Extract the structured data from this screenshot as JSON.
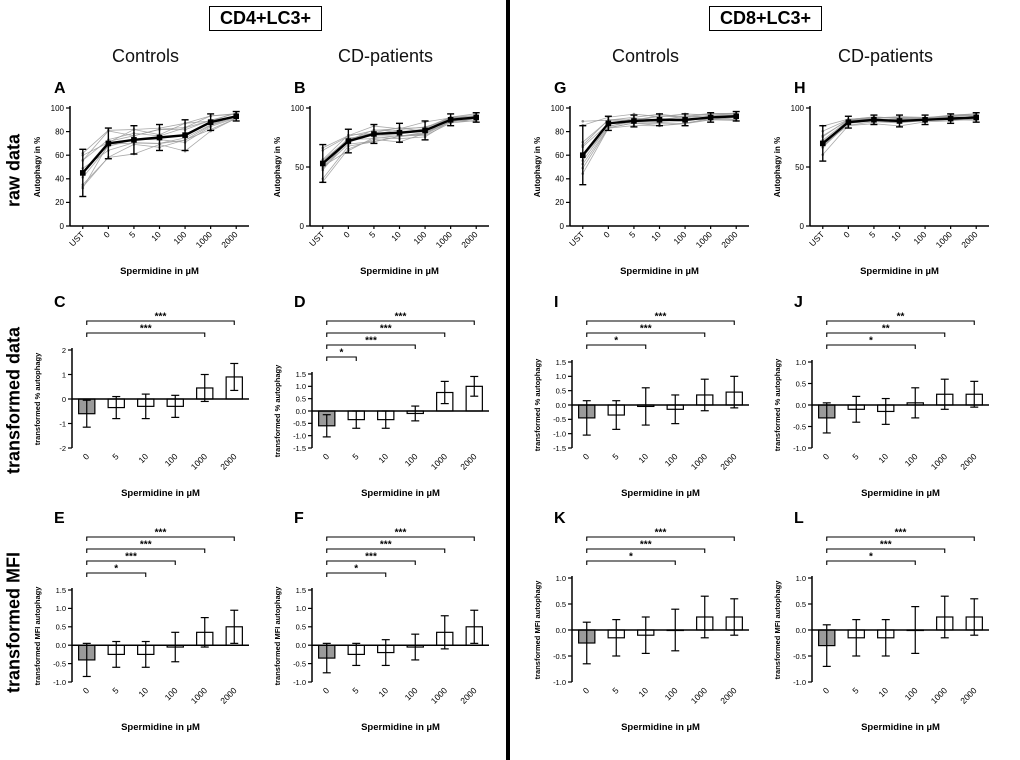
{
  "figure": {
    "group_headers": [
      {
        "label": "CD4+LC3+"
      },
      {
        "label": "CD8+LC3+"
      }
    ],
    "column_headers": [
      "Controls",
      "CD-patients",
      "Controls",
      "CD-patients"
    ],
    "row_labels": [
      "raw data",
      "transformed data",
      "transformed MFI"
    ],
    "colors": {
      "bar_gray": "#9a9a9a",
      "bar_white": "#ffffff",
      "line_black": "#000000",
      "individual_gray": "#9a9a9a"
    }
  },
  "chart_data": [
    {
      "panel": "A",
      "type": "line",
      "group": "CD4+LC3+",
      "cohort": "Controls",
      "categories": [
        "UST",
        "0",
        "5",
        "10",
        "100",
        "1000",
        "2000"
      ],
      "xlabel": "Spermidine in µM",
      "ylabel": "Autophagy in %",
      "ylim": [
        0,
        100
      ],
      "yticks": [
        0,
        20,
        40,
        60,
        80,
        100
      ],
      "ytick_labels": [
        "0",
        "20",
        "40",
        "60",
        "80",
        "100"
      ],
      "mean": [
        45,
        70,
        73,
        75,
        77,
        88,
        93
      ],
      "err": [
        20,
        13,
        12,
        11,
        13,
        7,
        4
      ],
      "n_individuals": 10
    },
    {
      "panel": "B",
      "type": "line",
      "group": "CD4+LC3+",
      "cohort": "CD-patients",
      "categories": [
        "UST",
        "0",
        "5",
        "10",
        "100",
        "1000",
        "2000"
      ],
      "xlabel": "Spermidine in µM",
      "ylabel": "Autophagy in %",
      "ylim": [
        0,
        100
      ],
      "yticks": [
        0,
        50,
        100
      ],
      "ytick_labels": [
        "0",
        "50",
        "100"
      ],
      "mean": [
        53,
        72,
        78,
        79,
        81,
        90,
        92
      ],
      "err": [
        16,
        10,
        8,
        8,
        8,
        5,
        4
      ],
      "n_individuals": 12
    },
    {
      "panel": "G",
      "type": "line",
      "group": "CD8+LC3+",
      "cohort": "Controls",
      "categories": [
        "UST",
        "0",
        "5",
        "10",
        "100",
        "1000",
        "2000"
      ],
      "xlabel": "Spermidine in µM",
      "ylabel": "Autophagy in %",
      "ylim": [
        0,
        100
      ],
      "yticks": [
        0,
        20,
        40,
        60,
        80,
        100
      ],
      "ytick_labels": [
        "0",
        "20",
        "40",
        "60",
        "80",
        "100"
      ],
      "mean": [
        60,
        87,
        89,
        90,
        90,
        92,
        93
      ],
      "err": [
        25,
        6,
        5,
        5,
        5,
        4,
        4
      ],
      "n_individuals": 10
    },
    {
      "panel": "H",
      "type": "line",
      "group": "CD8+LC3+",
      "cohort": "CD-patients",
      "categories": [
        "UST",
        "0",
        "5",
        "10",
        "100",
        "1000",
        "2000"
      ],
      "xlabel": "Spermidine in µM",
      "ylabel": "Autophagy in %",
      "ylim": [
        0,
        100
      ],
      "yticks": [
        0,
        50,
        100
      ],
      "ytick_labels": [
        "0",
        "50",
        "100"
      ],
      "mean": [
        70,
        88,
        90,
        89,
        90,
        91,
        92
      ],
      "err": [
        15,
        5,
        4,
        5,
        4,
        4,
        4
      ],
      "n_individuals": 12
    },
    {
      "panel": "C",
      "type": "bar",
      "group": "CD4+LC3+",
      "cohort": "Controls",
      "categories": [
        "0",
        "5",
        "10",
        "100",
        "1000",
        "2000"
      ],
      "xlabel": "Spermidine in µM",
      "ylabel": "transformed % autophagy",
      "ylim": [
        -2,
        2
      ],
      "yticks": [
        -2,
        -1,
        0,
        1,
        2
      ],
      "ytick_labels": [
        "-2",
        "-1",
        "0",
        "1",
        "2"
      ],
      "values": [
        -0.6,
        -0.35,
        -0.3,
        -0.3,
        0.45,
        0.9
      ],
      "err": [
        0.55,
        0.45,
        0.5,
        0.45,
        0.55,
        0.55
      ],
      "significance": [
        {
          "from": 0,
          "to": 5,
          "label": "***"
        },
        {
          "from": 0,
          "to": 4,
          "label": "***"
        }
      ]
    },
    {
      "panel": "D",
      "type": "bar",
      "group": "CD4+LC3+",
      "cohort": "CD-patients",
      "categories": [
        "0",
        "5",
        "10",
        "100",
        "1000",
        "2000"
      ],
      "xlabel": "Spermidine in µM",
      "ylabel": "transformed % autophagy",
      "ylim": [
        -1.5,
        1.5
      ],
      "yticks": [
        -1.5,
        -1,
        -0.5,
        0,
        0.5,
        1,
        1.5
      ],
      "ytick_labels": [
        "-1.5",
        "-1.0",
        "-0.5",
        "0.0",
        "0.5",
        "1.0",
        "1.5"
      ],
      "values": [
        -0.6,
        -0.35,
        -0.35,
        -0.1,
        0.75,
        1.0
      ],
      "err": [
        0.45,
        0.35,
        0.35,
        0.3,
        0.45,
        0.4
      ],
      "significance": [
        {
          "from": 0,
          "to": 5,
          "label": "***"
        },
        {
          "from": 0,
          "to": 4,
          "label": "***"
        },
        {
          "from": 0,
          "to": 3,
          "label": "***"
        },
        {
          "from": 0,
          "to": 1,
          "label": "*"
        }
      ]
    },
    {
      "panel": "I",
      "type": "bar",
      "group": "CD8+LC3+",
      "cohort": "Controls",
      "categories": [
        "0",
        "5",
        "10",
        "100",
        "1000",
        "2000"
      ],
      "xlabel": "Spermidine in µM",
      "ylabel": "transformed % autophagy",
      "ylim": [
        -1.5,
        1.5
      ],
      "yticks": [
        -1.5,
        -1,
        -0.5,
        0,
        0.5,
        1,
        1.5
      ],
      "ytick_labels": [
        "-1.5",
        "-1.0",
        "-0.5",
        "0.0",
        "0.5",
        "1.0",
        "1.5"
      ],
      "values": [
        -0.45,
        -0.35,
        -0.05,
        -0.15,
        0.35,
        0.45
      ],
      "err": [
        0.6,
        0.5,
        0.65,
        0.5,
        0.55,
        0.55
      ],
      "significance": [
        {
          "from": 0,
          "to": 5,
          "label": "***"
        },
        {
          "from": 0,
          "to": 4,
          "label": "***"
        },
        {
          "from": 0,
          "to": 2,
          "label": "*"
        }
      ]
    },
    {
      "panel": "J",
      "type": "bar",
      "group": "CD8+LC3+",
      "cohort": "CD-patients",
      "categories": [
        "0",
        "5",
        "10",
        "100",
        "1000",
        "2000"
      ],
      "xlabel": "Spermidine in µM",
      "ylabel": "transformed % autophagy",
      "ylim": [
        -1,
        1
      ],
      "yticks": [
        -1,
        -0.5,
        0,
        0.5,
        1
      ],
      "ytick_labels": [
        "-1.0",
        "-0.5",
        "0.0",
        "0.5",
        "1.0"
      ],
      "values": [
        -0.3,
        -0.1,
        -0.15,
        0.05,
        0.25,
        0.25
      ],
      "err": [
        0.35,
        0.3,
        0.3,
        0.35,
        0.35,
        0.3
      ],
      "significance": [
        {
          "from": 0,
          "to": 5,
          "label": "**"
        },
        {
          "from": 0,
          "to": 4,
          "label": "**"
        },
        {
          "from": 0,
          "to": 3,
          "label": "*"
        }
      ]
    },
    {
      "panel": "E",
      "type": "bar",
      "group": "CD4+LC3+",
      "cohort": "Controls",
      "categories": [
        "0",
        "5",
        "10",
        "100",
        "1000",
        "2000"
      ],
      "xlabel": "Spermidine in µM",
      "ylabel": "transformed MFI autophagy",
      "ylim": [
        -1,
        1.5
      ],
      "yticks": [
        -1,
        -0.5,
        0,
        0.5,
        1,
        1.5
      ],
      "ytick_labels": [
        "-1.0",
        "-0.5",
        "0.0",
        "0.5",
        "1.0",
        "1.5"
      ],
      "values": [
        -0.4,
        -0.25,
        -0.25,
        -0.05,
        0.35,
        0.5
      ],
      "err": [
        0.45,
        0.35,
        0.35,
        0.4,
        0.4,
        0.45
      ],
      "significance": [
        {
          "from": 0,
          "to": 5,
          "label": "***"
        },
        {
          "from": 0,
          "to": 4,
          "label": "***"
        },
        {
          "from": 0,
          "to": 3,
          "label": "***"
        },
        {
          "from": 0,
          "to": 2,
          "label": "*"
        }
      ]
    },
    {
      "panel": "F",
      "type": "bar",
      "group": "CD4+LC3+",
      "cohort": "CD-patients",
      "categories": [
        "0",
        "5",
        "10",
        "100",
        "1000",
        "2000"
      ],
      "xlabel": "Spermidine in µM",
      "ylabel": "transformed MFI autophagy",
      "ylim": [
        -1,
        1.5
      ],
      "yticks": [
        -1,
        -0.5,
        0,
        0.5,
        1,
        1.5
      ],
      "ytick_labels": [
        "-1.0",
        "-0.5",
        "0.0",
        "0.5",
        "1.0",
        "1.5"
      ],
      "values": [
        -0.35,
        -0.25,
        -0.2,
        -0.05,
        0.35,
        0.5
      ],
      "err": [
        0.4,
        0.3,
        0.35,
        0.35,
        0.45,
        0.45
      ],
      "significance": [
        {
          "from": 0,
          "to": 5,
          "label": "***"
        },
        {
          "from": 0,
          "to": 4,
          "label": "***"
        },
        {
          "from": 0,
          "to": 3,
          "label": "***"
        },
        {
          "from": 0,
          "to": 2,
          "label": "*"
        }
      ]
    },
    {
      "panel": "K",
      "type": "bar",
      "group": "CD8+LC3+",
      "cohort": "Controls",
      "categories": [
        "0",
        "5",
        "10",
        "100",
        "1000",
        "2000"
      ],
      "xlabel": "Spermidine in µM",
      "ylabel": "transformed MFI autophagy",
      "ylim": [
        -1,
        1
      ],
      "yticks": [
        -1,
        -0.5,
        0,
        0.5,
        1
      ],
      "ytick_labels": [
        "-1.0",
        "-0.5",
        "0.0",
        "0.5",
        "1.0"
      ],
      "values": [
        -0.25,
        -0.15,
        -0.1,
        0,
        0.25,
        0.25
      ],
      "err": [
        0.4,
        0.35,
        0.35,
        0.4,
        0.4,
        0.35
      ],
      "significance": [
        {
          "from": 0,
          "to": 5,
          "label": "***"
        },
        {
          "from": 0,
          "to": 4,
          "label": "***"
        },
        {
          "from": 0,
          "to": 3,
          "label": "*"
        }
      ]
    },
    {
      "panel": "L",
      "type": "bar",
      "group": "CD8+LC3+",
      "cohort": "CD-patients",
      "categories": [
        "0",
        "5",
        "10",
        "100",
        "1000",
        "2000"
      ],
      "xlabel": "Spermidine in µM",
      "ylabel": "transformed MFI autophagy",
      "ylim": [
        -1,
        1
      ],
      "yticks": [
        -1,
        -0.5,
        0,
        0.5,
        1
      ],
      "ytick_labels": [
        "-1.0",
        "-0.5",
        "0.0",
        "0.5",
        "1.0"
      ],
      "values": [
        -0.3,
        -0.15,
        -0.15,
        0,
        0.25,
        0.25
      ],
      "err": [
        0.4,
        0.35,
        0.35,
        0.45,
        0.4,
        0.35
      ],
      "significance": [
        {
          "from": 0,
          "to": 5,
          "label": "***"
        },
        {
          "from": 0,
          "to": 4,
          "label": "***"
        },
        {
          "from": 0,
          "to": 3,
          "label": "*"
        }
      ]
    }
  ]
}
